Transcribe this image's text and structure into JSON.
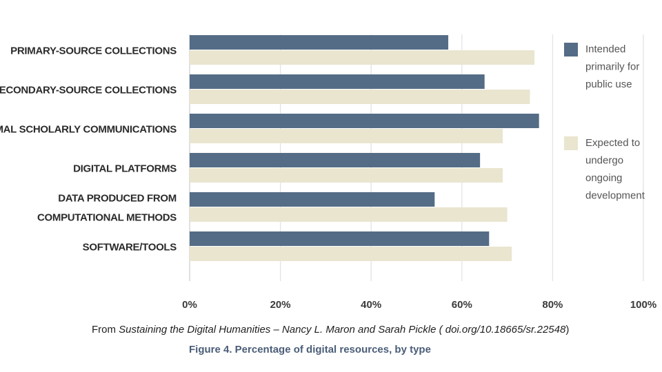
{
  "chart_data": {
    "type": "bar",
    "orientation": "horizontal",
    "categories": [
      [
        "PRIMARY-SOURCE COLLECTIONS"
      ],
      [
        "SECONDARY-SOURCE COLLECTIONS"
      ],
      [
        "INFORMAL SCHOLARLY COMMUNICATIONS"
      ],
      [
        "DIGITAL PLATFORMS"
      ],
      [
        "DATA PRODUCED FROM",
        "COMPUTATIONAL METHODS"
      ],
      [
        "SOFTWARE/TOOLS"
      ]
    ],
    "series": [
      {
        "name": "Intended primarily for public use",
        "legend_lines": [
          "Intended",
          "primarily for",
          "public use"
        ],
        "color": "#546c86",
        "values": [
          57,
          65,
          77,
          64,
          54,
          66
        ]
      },
      {
        "name": "Expected to undergo ongoing development",
        "legend_lines": [
          "Expected to",
          "undergo",
          "ongoing",
          "development"
        ],
        "color": "#e9e5cf",
        "values": [
          76,
          75,
          69,
          69,
          70,
          71
        ]
      }
    ],
    "xlim": [
      0,
      100
    ],
    "x_ticks": [
      "0%",
      "20%",
      "40%",
      "60%",
      "80%",
      "100%"
    ],
    "grid": true,
    "legend_position": "right",
    "caption": "Figure 4. Percentage of digital resources, by type"
  },
  "source": {
    "prefix": "From ",
    "title": "Sustaining the Digital Humanities – Nancy L. Maron and Sarah Pickle ( doi.org/10.18665/sr.22548",
    "suffix": ")"
  }
}
